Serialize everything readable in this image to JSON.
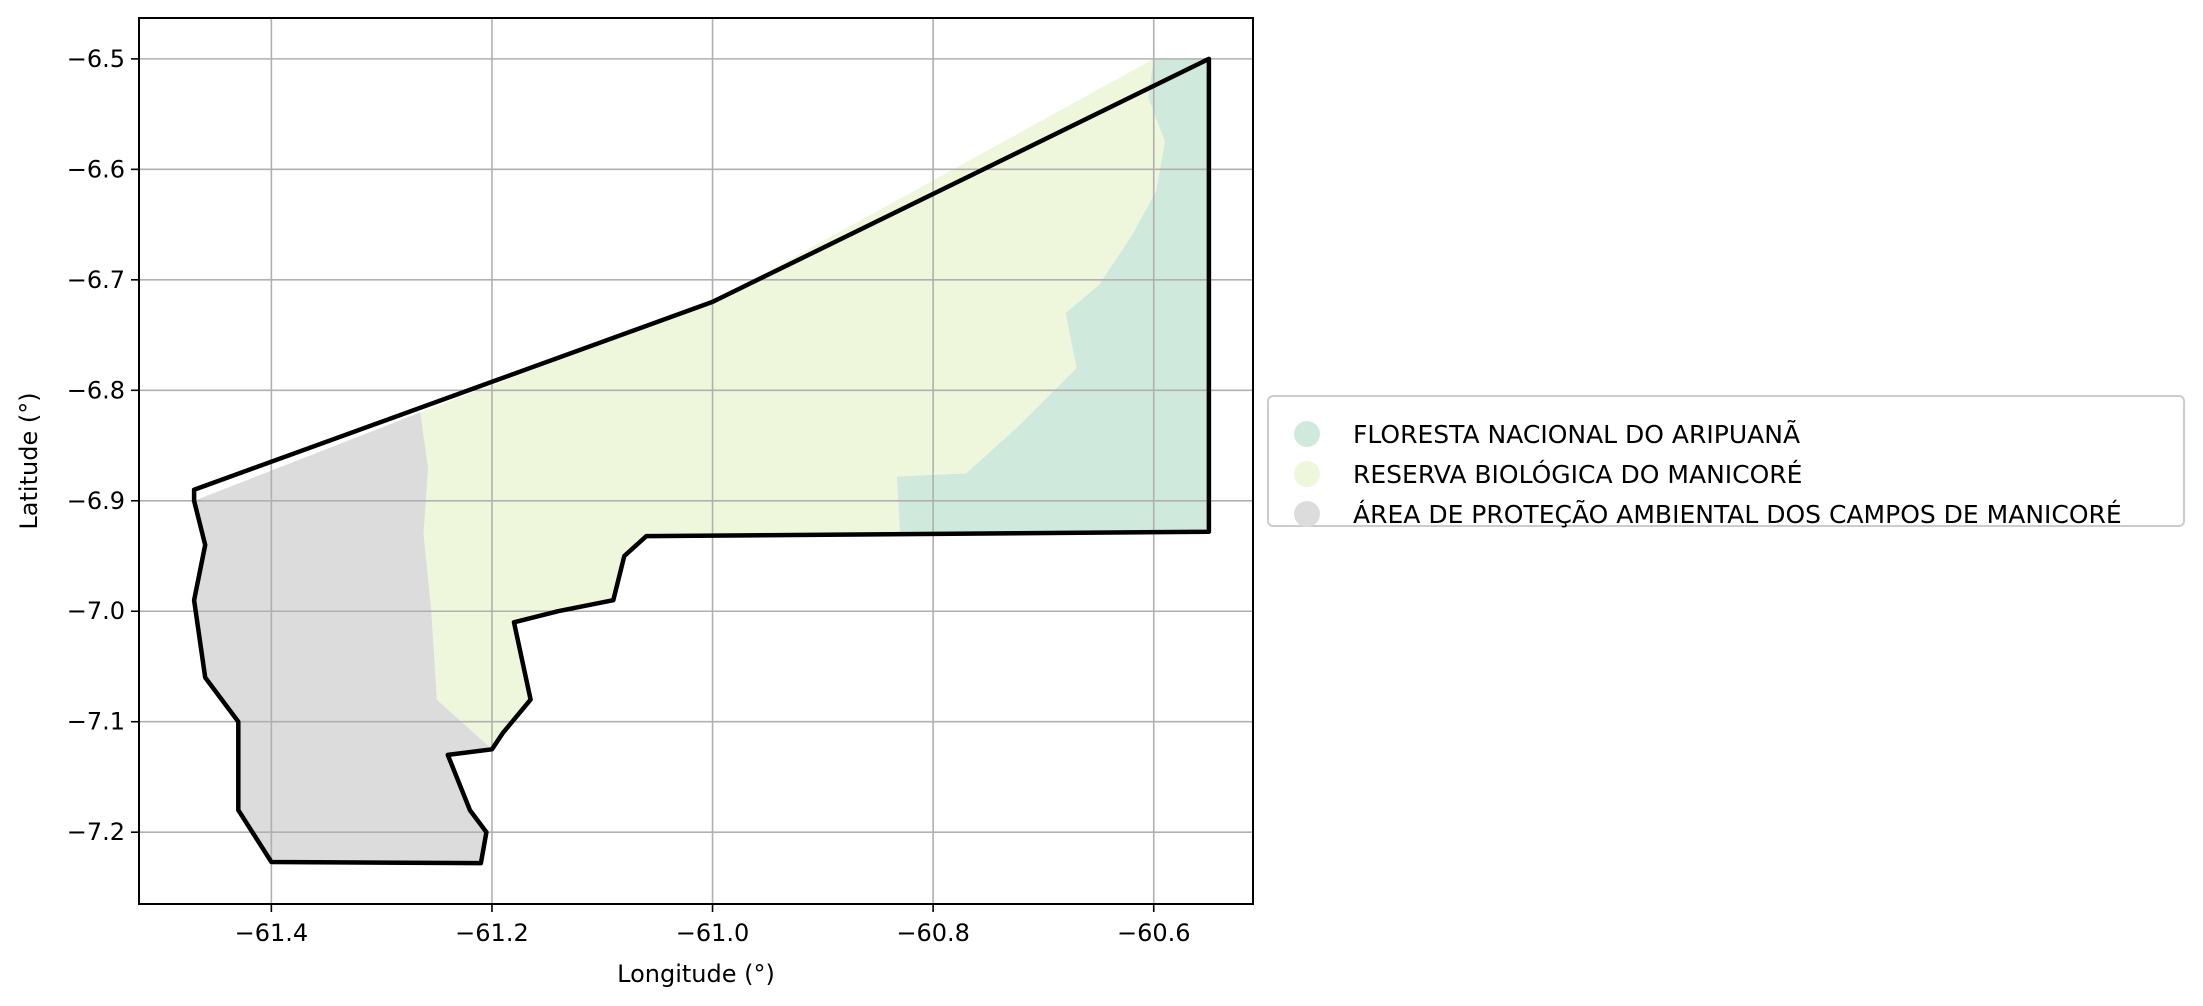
{
  "chart_data": {
    "type": "map",
    "title": "",
    "xlabel": "Longitude (°)",
    "ylabel": "Latitude (°)",
    "xlim": [
      -61.52,
      -60.51
    ],
    "ylim": [
      -7.265,
      -6.463
    ],
    "xticks": [
      -61.4,
      -61.2,
      -61.0,
      -60.8,
      -60.6
    ],
    "yticks": [
      -6.5,
      -6.6,
      -6.7,
      -6.8,
      -6.9,
      -7.0,
      -7.1,
      -7.2
    ],
    "xtick_labels": [
      "−61.4",
      "−61.2",
      "−61.0",
      "−60.8",
      "−60.6"
    ],
    "ytick_labels": [
      "−6.5",
      "−6.6",
      "−6.7",
      "−6.8",
      "−6.9",
      "−7.0",
      "−7.1",
      "−7.2"
    ],
    "grid": true,
    "legend_position": "right",
    "series": [
      {
        "name": "FLORESTA NACIONAL DO ARIPUANÃ",
        "color": "#cfeadc",
        "polygon": [
          [
            -60.6,
            -6.5
          ],
          [
            -60.55,
            -6.5
          ],
          [
            -60.55,
            -6.928
          ],
          [
            -60.83,
            -6.93
          ],
          [
            -60.833,
            -6.878
          ],
          [
            -60.77,
            -6.875
          ],
          [
            -60.72,
            -6.83
          ],
          [
            -60.67,
            -6.78
          ],
          [
            -60.68,
            -6.73
          ],
          [
            -60.65,
            -6.705
          ],
          [
            -60.62,
            -6.66
          ],
          [
            -60.598,
            -6.62
          ],
          [
            -60.59,
            -6.575
          ],
          [
            -60.605,
            -6.535
          ]
        ]
      },
      {
        "name": "RESERVA BIOLÓGICA DO MANICORÉ",
        "color": "#eef7dc",
        "polygon": [
          [
            -61.265,
            -6.82
          ],
          [
            -61.0,
            -6.72
          ],
          [
            -60.6,
            -6.5
          ],
          [
            -60.605,
            -6.535
          ],
          [
            -60.59,
            -6.575
          ],
          [
            -60.598,
            -6.62
          ],
          [
            -60.62,
            -6.66
          ],
          [
            -60.65,
            -6.705
          ],
          [
            -60.68,
            -6.73
          ],
          [
            -60.67,
            -6.78
          ],
          [
            -60.72,
            -6.83
          ],
          [
            -60.77,
            -6.875
          ],
          [
            -60.833,
            -6.878
          ],
          [
            -60.83,
            -6.93
          ],
          [
            -61.06,
            -6.932
          ],
          [
            -61.08,
            -6.95
          ],
          [
            -61.09,
            -6.99
          ],
          [
            -61.14,
            -7.0
          ],
          [
            -61.18,
            -7.01
          ],
          [
            -61.165,
            -7.08
          ],
          [
            -61.19,
            -7.11
          ],
          [
            -61.2,
            -7.125
          ],
          [
            -61.25,
            -7.08
          ],
          [
            -61.255,
            -7.0
          ],
          [
            -61.262,
            -6.93
          ],
          [
            -61.258,
            -6.87
          ]
        ]
      },
      {
        "name": "ÁREA DE PROTEÇÃO AMBIENTAL DOS CAMPOS DE MANICORÉ",
        "color": "#dcdcdc",
        "polygon": [
          [
            -61.47,
            -6.9
          ],
          [
            -61.265,
            -6.82
          ],
          [
            -61.258,
            -6.87
          ],
          [
            -61.262,
            -6.93
          ],
          [
            -61.255,
            -7.0
          ],
          [
            -61.25,
            -7.08
          ],
          [
            -61.2,
            -7.125
          ],
          [
            -61.24,
            -7.13
          ],
          [
            -61.22,
            -7.18
          ],
          [
            -61.205,
            -7.2
          ],
          [
            -61.21,
            -7.228
          ],
          [
            -61.4,
            -7.227
          ],
          [
            -61.43,
            -7.18
          ],
          [
            -61.43,
            -7.1
          ],
          [
            -61.46,
            -7.06
          ],
          [
            -61.47,
            -6.99
          ],
          [
            -61.46,
            -6.94
          ]
        ]
      }
    ],
    "boundary": [
      [
        -61.47,
        -6.89
      ],
      [
        -61.0,
        -6.72
      ],
      [
        -60.55,
        -6.5
      ],
      [
        -60.55,
        -6.928
      ],
      [
        -61.06,
        -6.932
      ],
      [
        -61.08,
        -6.95
      ],
      [
        -61.09,
        -6.99
      ],
      [
        -61.14,
        -7.0
      ],
      [
        -61.18,
        -7.01
      ],
      [
        -61.165,
        -7.08
      ],
      [
        -61.19,
        -7.11
      ],
      [
        -61.2,
        -7.125
      ],
      [
        -61.24,
        -7.13
      ],
      [
        -61.22,
        -7.18
      ],
      [
        -61.205,
        -7.2
      ],
      [
        -61.21,
        -7.228
      ],
      [
        -61.4,
        -7.227
      ],
      [
        -61.43,
        -7.18
      ],
      [
        -61.43,
        -7.1
      ],
      [
        -61.46,
        -7.06
      ],
      [
        -61.47,
        -6.99
      ],
      [
        -61.46,
        -6.94
      ],
      [
        -61.47,
        -6.9
      ]
    ]
  }
}
